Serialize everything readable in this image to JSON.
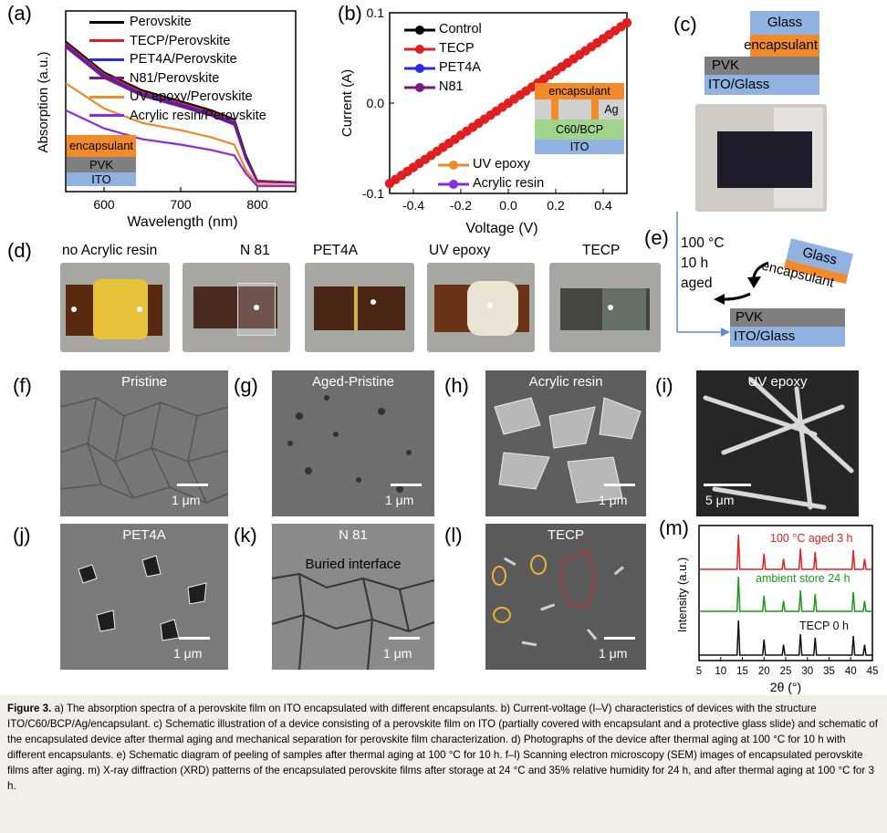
{
  "panels": {
    "a": {
      "label": "(a)",
      "legend": [
        "Perovskite",
        "TECP/Perovskite",
        "PET4A/Perovskite",
        "N81/Perovskite",
        "UV epoxy/Perovskite",
        "Acrylic resin/Perovskite"
      ],
      "stack": [
        "encapsulant",
        "PVK",
        "ITO"
      ],
      "colors": {
        "encapsulant": "#f08a2a",
        "PVK": "#7f7f7f",
        "ITO": "#8fb2e0"
      }
    },
    "b": {
      "label": "(b)",
      "legend_top": [
        "Control",
        "TECP",
        "PET4A",
        "N81"
      ],
      "legend_bottom": [
        "UV epoxy",
        "Acrylic resin"
      ],
      "device_stack": [
        "encapsulant",
        "Ag",
        "C60/BCP",
        "ITO"
      ]
    },
    "c": {
      "label": "(c)",
      "stack": [
        "Glass",
        "encapsulant",
        "PVK",
        "ITO/Glass"
      ]
    },
    "d": {
      "label": "(d)",
      "photos": [
        "no   Acrylic resin",
        "N 81",
        "PET4A",
        "UV epoxy",
        "TECP"
      ]
    },
    "e": {
      "label": "(e)",
      "conditions": [
        "100 °C",
        "10 h",
        "aged"
      ],
      "stack_top": [
        "Glass",
        "encapsulant"
      ],
      "stack_bottom": [
        "PVK",
        "ITO/Glass"
      ]
    },
    "sem": [
      {
        "label": "(f)",
        "title": "Pristine",
        "scale": "1 μm"
      },
      {
        "label": "(g)",
        "title": "Aged-Pristine",
        "scale": "1 μm"
      },
      {
        "label": "(h)",
        "title": "Acrylic resin",
        "scale": "1 μm"
      },
      {
        "label": "(i)",
        "title": "UV epoxy",
        "scale": "5 μm"
      },
      {
        "label": "(j)",
        "title": "PET4A",
        "scale": "1 μm"
      },
      {
        "label": "(k)",
        "title": "N 81",
        "subtitle": "Buried interface",
        "scale": "1 μm"
      },
      {
        "label": "(l)",
        "title": "TECP",
        "scale": "1 μm"
      }
    ],
    "m": {
      "label": "(m)",
      "traces": [
        "100 °C aged 3 h",
        "ambient store 24 h",
        "TECP 0 h"
      ],
      "trace_colors": [
        "#e02020",
        "#1a9a1a",
        "#111111"
      ]
    }
  },
  "chart_data": [
    {
      "type": "line",
      "panel": "a",
      "xlabel": "Wavelength (nm)",
      "ylabel": "Absorption (a.u.)",
      "xlim": [
        550,
        850
      ],
      "xticks": [
        600,
        700,
        800
      ],
      "x": [
        550,
        600,
        650,
        700,
        740,
        770,
        785,
        800,
        850
      ],
      "series": [
        {
          "name": "Perovskite",
          "color": "#000000",
          "values": [
            0.83,
            0.66,
            0.56,
            0.5,
            0.45,
            0.4,
            0.2,
            0.06,
            0.05
          ]
        },
        {
          "name": "TECP/Perovskite",
          "color": "#e02020",
          "values": [
            0.82,
            0.65,
            0.55,
            0.49,
            0.44,
            0.39,
            0.19,
            0.06,
            0.05
          ]
        },
        {
          "name": "PET4A/Perovskite",
          "color": "#2a2ae0",
          "values": [
            0.81,
            0.64,
            0.54,
            0.48,
            0.43,
            0.38,
            0.19,
            0.055,
            0.05
          ]
        },
        {
          "name": "N81/Perovskite",
          "color": "#7a1a7a",
          "values": [
            0.8,
            0.63,
            0.53,
            0.47,
            0.42,
            0.37,
            0.18,
            0.055,
            0.05
          ]
        },
        {
          "name": "UV epoxy/Perovskite",
          "color": "#f08a2a",
          "values": [
            0.6,
            0.46,
            0.38,
            0.34,
            0.3,
            0.26,
            0.12,
            0.04,
            0.035
          ]
        },
        {
          "name": "Acrylic resin/Perovskite",
          "color": "#8a2be2",
          "values": [
            0.45,
            0.35,
            0.29,
            0.26,
            0.23,
            0.2,
            0.1,
            0.03,
            0.03
          ]
        }
      ]
    },
    {
      "type": "line",
      "panel": "b",
      "xlabel": "Voltage (V)",
      "ylabel": "Current (A)",
      "xlim": [
        -0.5,
        0.5
      ],
      "ylim": [
        -0.1,
        0.1
      ],
      "xticks": [
        -0.4,
        -0.2,
        0.0,
        0.2,
        0.4
      ],
      "yticks": [
        -0.1,
        0.0,
        0.1
      ],
      "x": [
        -0.5,
        0.5
      ],
      "series": [
        {
          "name": "Control",
          "color": "#000000",
          "values": [
            -0.089,
            0.089
          ]
        },
        {
          "name": "TECP",
          "color": "#e02020",
          "values": [
            -0.089,
            0.089
          ]
        },
        {
          "name": "PET4A",
          "color": "#2a2ae0",
          "values": [
            -0.089,
            0.089
          ]
        },
        {
          "name": "N81",
          "color": "#7a1a7a",
          "values": [
            -0.089,
            0.089
          ]
        },
        {
          "name": "UV epoxy",
          "color": "#f08a2a",
          "values": [
            -0.089,
            0.089
          ]
        },
        {
          "name": "Acrylic resin",
          "color": "#8a2be2",
          "values": [
            -0.089,
            0.089
          ]
        }
      ]
    },
    {
      "type": "line",
      "panel": "m",
      "xlabel": "2θ (°)",
      "ylabel": "Intensity (a.u.)",
      "xlim": [
        5,
        45
      ],
      "xticks": [
        5,
        10,
        15,
        20,
        25,
        30,
        35,
        40,
        45
      ],
      "peaks": [
        14.1,
        20.0,
        24.5,
        28.4,
        31.8,
        40.6,
        43.2
      ],
      "series": [
        {
          "name": "100 °C aged 3 h",
          "color": "#e02020",
          "peak_heights": [
            1.0,
            0.45,
            0.3,
            0.6,
            0.5,
            0.55,
            0.3
          ]
        },
        {
          "name": "ambient store 24 h",
          "color": "#1a9a1a",
          "peak_heights": [
            1.0,
            0.45,
            0.3,
            0.6,
            0.5,
            0.55,
            0.3
          ]
        },
        {
          "name": "TECP 0 h",
          "color": "#111111",
          "peak_heights": [
            1.0,
            0.45,
            0.3,
            0.6,
            0.5,
            0.55,
            0.3
          ]
        }
      ]
    }
  ],
  "caption": {
    "figure": "Figure 3.",
    "text": "a) The absorption spectra of a perovskite film on ITO encapsulated with different encapsulants. b) Current-voltage (I–V) characteristics of devices with the structure ITO/C60/BCP/Ag/encapsulant. c) Schematic illustration of a device consisting of a perovskite film on ITO (partially covered with encapsulant and a protective glass slide) and schematic of the encapsulated device after thermal aging and mechanical separation for perovskite film characterization. d) Photographs of the device after thermal aging at 100 °C for 10 h with different encapsulants. e) Schematic diagram of peeling of samples after thermal aging at 100 °C for 10 h. f–l) Scanning electron microscopy (SEM) images of encapsulated perovskite films after aging. m) X-ray diffraction (XRD) patterns of the encapsulated perovskite films after storage at 24 °C and 35% relative humidity for 24 h, and after thermal aging at 100 °C for 3 h."
  }
}
